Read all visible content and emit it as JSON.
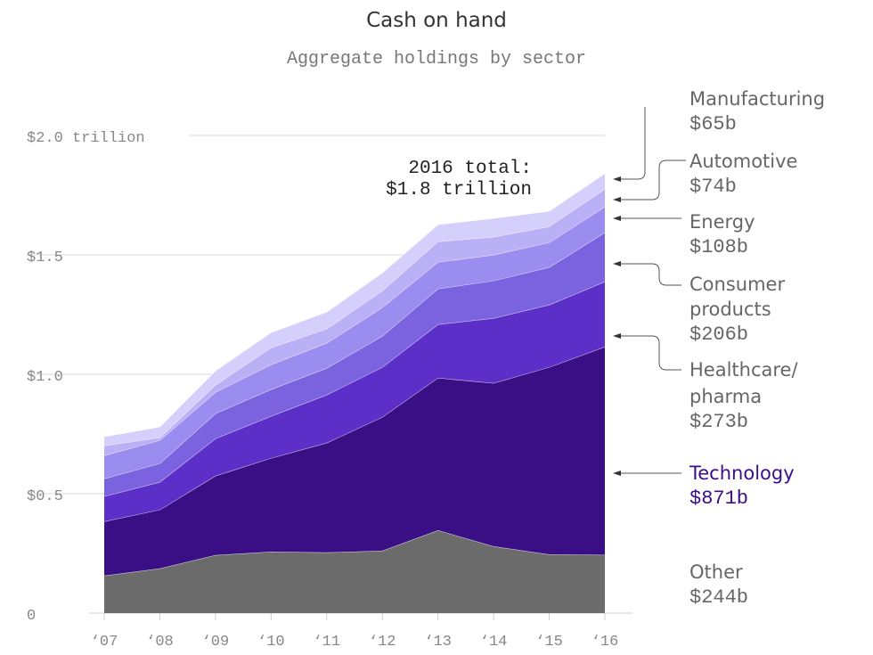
{
  "chart_data": {
    "type": "area",
    "stacked": true,
    "title": "Cash on hand",
    "subtitle": "Aggregate holdings by sector",
    "xlabel": "",
    "ylabel": "",
    "ylim": [
      0,
      2.0
    ],
    "y_ticks": [
      {
        "value": 0,
        "label": "0"
      },
      {
        "value": 0.5,
        "label": "$0.5"
      },
      {
        "value": 1.0,
        "label": "$1.0"
      },
      {
        "value": 1.5,
        "label": "$1.5"
      },
      {
        "value": 2.0,
        "label": "$2.0 trillion"
      }
    ],
    "categories": [
      "‘07",
      "‘08",
      "‘09",
      "‘10",
      "‘11",
      "‘12",
      "‘13",
      "‘14",
      "‘15",
      "‘16"
    ],
    "series": [
      {
        "name": "Other",
        "label_value": "$244b",
        "color": "#6b6b6b",
        "values": [
          0.157,
          0.187,
          0.243,
          0.257,
          0.254,
          0.261,
          0.347,
          0.28,
          0.246,
          0.244
        ]
      },
      {
        "name": "Technology",
        "label_value": "$871b",
        "color": "#3a0f86",
        "values": [
          0.227,
          0.246,
          0.332,
          0.392,
          0.459,
          0.56,
          0.638,
          0.683,
          0.784,
          0.871
        ]
      },
      {
        "name": "Healthcare/ pharma",
        "label_value": "$273b",
        "color": "#5c2fc8",
        "values": [
          0.105,
          0.116,
          0.156,
          0.176,
          0.201,
          0.209,
          0.224,
          0.272,
          0.261,
          0.273
        ]
      },
      {
        "name": "Consumer products",
        "label_value": "$206b",
        "color": "#7b62df",
        "values": [
          0.074,
          0.078,
          0.105,
          0.112,
          0.112,
          0.13,
          0.149,
          0.157,
          0.157,
          0.206
        ]
      },
      {
        "name": "Energy",
        "label_value": "$108b",
        "color": "#9b8cf0",
        "values": [
          0.097,
          0.097,
          0.089,
          0.104,
          0.105,
          0.12,
          0.112,
          0.108,
          0.104,
          0.108
        ]
      },
      {
        "name": "Automotive",
        "label_value": "$74b",
        "color": "#b9b0f6",
        "values": [
          0.041,
          0.011,
          0.03,
          0.071,
          0.059,
          0.07,
          0.086,
          0.075,
          0.067,
          0.074
        ]
      },
      {
        "name": "Manufacturing",
        "label_value": "$65b",
        "color": "#d4cffb",
        "values": [
          0.038,
          0.045,
          0.06,
          0.063,
          0.071,
          0.075,
          0.071,
          0.078,
          0.064,
          0.065
        ]
      }
    ],
    "annotation": {
      "line1": "2016 total:",
      "line2": "$1.8 trillion"
    },
    "highlight_color": "#3a0f86",
    "grid": true,
    "legend": "right, direct labels"
  }
}
